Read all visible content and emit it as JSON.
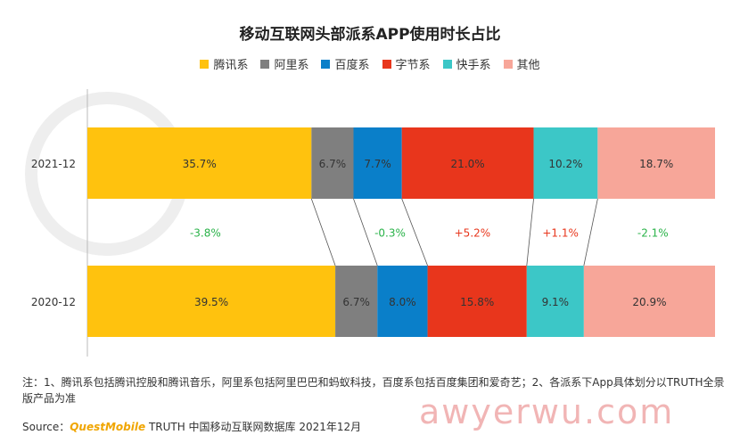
{
  "chart_data": {
    "type": "bar",
    "orientation": "horizontal",
    "stacked": "percent",
    "title": "移动互联网头部派系APP使用时长占比",
    "categories": [
      "2021-12",
      "2020-12"
    ],
    "series": [
      {
        "name": "腾讯系",
        "color": "#ffc20e",
        "values": [
          35.7,
          39.5
        ]
      },
      {
        "name": "阿里系",
        "color": "#7f7f7f",
        "values": [
          6.7,
          6.7
        ]
      },
      {
        "name": "百度系",
        "color": "#0a7fc9",
        "values": [
          7.7,
          8.0
        ]
      },
      {
        "name": "字节系",
        "color": "#e8361c",
        "values": [
          21.0,
          15.8
        ]
      },
      {
        "name": "快手系",
        "color": "#3cc7c7",
        "values": [
          10.2,
          9.1
        ]
      },
      {
        "name": "其他",
        "color": "#f7a699",
        "values": [
          18.7,
          20.9
        ]
      }
    ],
    "value_labels": [
      [
        "35.7%",
        "6.7%",
        "7.7%",
        "21.0%",
        "10.2%",
        "18.7%"
      ],
      [
        "39.5%",
        "6.7%",
        "8.0%",
        "15.8%",
        "9.1%",
        "20.9%"
      ]
    ],
    "change_labels": [
      "-3.8%",
      "",
      "-0.3%",
      "+5.2%",
      "+1.1%",
      "-2.1%"
    ],
    "legend_position": "top-center",
    "grid": false
  },
  "colors": {
    "increase": "#e8361c",
    "decrease": "#2bb34a"
  },
  "note": "注：1、腾讯系包括腾讯控股和腾讯音乐，阿里系包括阿里巴巴和蚂蚁科技，百度系包括百度集团和爱奇艺；2、各派系下App具体划分以TRUTH全景版产品为准",
  "source": {
    "prefix": "Source：",
    "brand": "QuestMobile",
    "rest": " TRUTH 中国移动互联网数据库 2021年12月"
  },
  "watermark": "awyerwu.com"
}
